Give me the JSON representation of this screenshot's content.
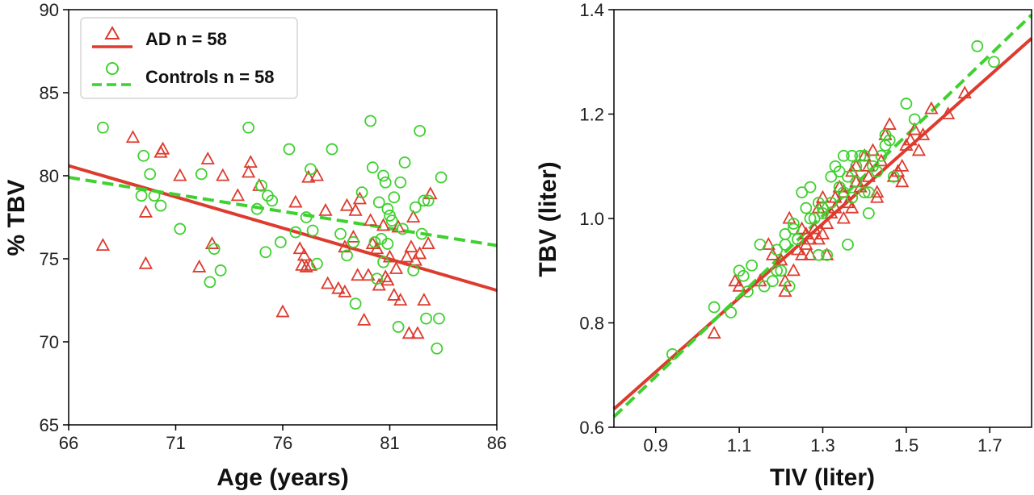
{
  "colors": {
    "ad": "#dd3b2e",
    "controls": "#3ed12f"
  },
  "chart_data": [
    {
      "type": "scatter",
      "xlabel": "Age (years)",
      "ylabel": "% TBV",
      "xlim": [
        66,
        86
      ],
      "ylim": [
        65,
        90
      ],
      "xticks": [
        "66",
        "71",
        "76",
        "81",
        "86"
      ],
      "yticks": [
        "65",
        "70",
        "75",
        "80",
        "85",
        "90"
      ],
      "legend": "top-left",
      "grid": false,
      "series": [
        {
          "name": "AD n = 58",
          "marker": "triangle",
          "points": [
            [
              67.6,
              75.8
            ],
            [
              69.0,
              82.3
            ],
            [
              69.6,
              74.7
            ],
            [
              69.6,
              77.8
            ],
            [
              70.3,
              81.4
            ],
            [
              70.4,
              81.6
            ],
            [
              71.2,
              80.0
            ],
            [
              72.1,
              74.5
            ],
            [
              72.5,
              81.0
            ],
            [
              72.7,
              75.9
            ],
            [
              73.2,
              80.0
            ],
            [
              74.4,
              80.2
            ],
            [
              74.5,
              80.8
            ],
            [
              74.9,
              79.4
            ],
            [
              76.0,
              71.8
            ],
            [
              76.6,
              78.4
            ],
            [
              76.8,
              75.6
            ],
            [
              76.9,
              74.6
            ],
            [
              77.0,
              75.2
            ],
            [
              77.1,
              74.5
            ],
            [
              77.2,
              79.9
            ],
            [
              77.3,
              74.6
            ],
            [
              77.6,
              80.0
            ],
            [
              78.0,
              77.9
            ],
            [
              78.1,
              73.5
            ],
            [
              78.6,
              73.2
            ],
            [
              78.9,
              75.7
            ],
            [
              78.9,
              73.0
            ],
            [
              79.0,
              78.2
            ],
            [
              79.3,
              76.3
            ],
            [
              79.4,
              77.9
            ],
            [
              79.5,
              74.0
            ],
            [
              79.6,
              78.6
            ],
            [
              79.8,
              71.3
            ],
            [
              80.0,
              74.0
            ],
            [
              80.1,
              77.3
            ],
            [
              80.2,
              75.9
            ],
            [
              80.4,
              75.6
            ],
            [
              80.5,
              73.4
            ],
            [
              80.7,
              77.0
            ],
            [
              80.8,
              73.9
            ],
            [
              80.9,
              73.7
            ],
            [
              81.0,
              75.1
            ],
            [
              81.2,
              72.8
            ],
            [
              81.3,
              74.4
            ],
            [
              81.4,
              76.9
            ],
            [
              81.5,
              72.5
            ],
            [
              81.8,
              75.1
            ],
            [
              81.9,
              70.5
            ],
            [
              82.0,
              75.7
            ],
            [
              82.1,
              77.5
            ],
            [
              82.2,
              74.9
            ],
            [
              82.3,
              70.5
            ],
            [
              82.4,
              75.3
            ],
            [
              82.6,
              72.5
            ],
            [
              82.8,
              75.9
            ],
            [
              82.9,
              78.9
            ],
            [
              73.9,
              78.8
            ]
          ],
          "fit": [
            [
              66,
              80.6
            ],
            [
              86,
              73.1
            ]
          ],
          "line_style": "solid"
        },
        {
          "name": "Controls n = 58",
          "marker": "circle",
          "points": [
            [
              67.6,
              82.9
            ],
            [
              69.4,
              78.8
            ],
            [
              69.5,
              81.2
            ],
            [
              69.8,
              80.1
            ],
            [
              70.0,
              78.8
            ],
            [
              70.3,
              78.2
            ],
            [
              71.2,
              76.8
            ],
            [
              72.2,
              80.1
            ],
            [
              72.6,
              73.6
            ],
            [
              72.8,
              75.6
            ],
            [
              73.1,
              74.3
            ],
            [
              74.4,
              82.9
            ],
            [
              74.8,
              78.0
            ],
            [
              75.0,
              79.4
            ],
            [
              75.2,
              75.4
            ],
            [
              75.3,
              78.8
            ],
            [
              75.5,
              78.5
            ],
            [
              75.9,
              76.0
            ],
            [
              76.3,
              81.6
            ],
            [
              76.6,
              76.6
            ],
            [
              77.1,
              77.5
            ],
            [
              77.3,
              80.4
            ],
            [
              77.4,
              76.7
            ],
            [
              77.6,
              74.7
            ],
            [
              78.3,
              81.6
            ],
            [
              78.7,
              76.5
            ],
            [
              79.0,
              75.2
            ],
            [
              79.3,
              76.0
            ],
            [
              79.4,
              72.3
            ],
            [
              79.7,
              79.0
            ],
            [
              80.1,
              83.3
            ],
            [
              80.2,
              80.5
            ],
            [
              80.3,
              76.0
            ],
            [
              80.4,
              73.8
            ],
            [
              80.5,
              78.4
            ],
            [
              80.6,
              76.2
            ],
            [
              80.7,
              74.8
            ],
            [
              80.7,
              80.0
            ],
            [
              80.8,
              79.6
            ],
            [
              80.9,
              78.0
            ],
            [
              81.0,
              77.6
            ],
            [
              81.1,
              77.3
            ],
            [
              81.2,
              78.7
            ],
            [
              81.4,
              70.9
            ],
            [
              81.5,
              79.6
            ],
            [
              81.6,
              76.8
            ],
            [
              81.7,
              80.8
            ],
            [
              82.1,
              74.3
            ],
            [
              82.2,
              78.1
            ],
            [
              82.4,
              82.7
            ],
            [
              82.5,
              76.5
            ],
            [
              82.6,
              78.5
            ],
            [
              82.7,
              71.4
            ],
            [
              82.8,
              78.5
            ],
            [
              83.2,
              69.6
            ],
            [
              83.3,
              71.4
            ],
            [
              83.4,
              79.9
            ],
            [
              80.9,
              75.9
            ]
          ],
          "fit": [
            [
              66,
              79.9
            ],
            [
              86,
              75.8
            ]
          ],
          "line_style": "dashed"
        }
      ]
    },
    {
      "type": "scatter",
      "xlabel": "TIV (liter)",
      "ylabel": "TBV (liter)",
      "xlim": [
        0.8,
        1.8
      ],
      "ylim": [
        0.6,
        1.4
      ],
      "xticks": [
        "0.9",
        "1.1",
        "1.3",
        "1.5",
        "1.7"
      ],
      "yticks": [
        "0.6",
        "0.8",
        "1.0",
        "1.2",
        "1.4"
      ],
      "grid": false,
      "series": [
        {
          "name": "AD n = 58",
          "marker": "triangle",
          "points": [
            [
              1.04,
              0.78
            ],
            [
              1.09,
              0.88
            ],
            [
              1.1,
              0.87
            ],
            [
              1.15,
              0.88
            ],
            [
              1.17,
              0.95
            ],
            [
              1.18,
              0.93
            ],
            [
              1.2,
              0.92
            ],
            [
              1.21,
              0.86
            ],
            [
              1.22,
              1.0
            ],
            [
              1.23,
              0.9
            ],
            [
              1.24,
              0.94
            ],
            [
              1.25,
              0.93
            ],
            [
              1.26,
              0.97
            ],
            [
              1.27,
              0.96
            ],
            [
              1.27,
              0.93
            ],
            [
              1.28,
              0.98
            ],
            [
              1.29,
              1.02
            ],
            [
              1.3,
              0.97
            ],
            [
              1.3,
              1.04
            ],
            [
              1.31,
              0.99
            ],
            [
              1.32,
              1.01
            ],
            [
              1.33,
              1.04
            ],
            [
              1.34,
              1.06
            ],
            [
              1.35,
              1.0
            ],
            [
              1.36,
              1.03
            ],
            [
              1.37,
              1.02
            ],
            [
              1.38,
              1.07
            ],
            [
              1.38,
              1.1
            ],
            [
              1.4,
              1.12
            ],
            [
              1.41,
              1.08
            ],
            [
              1.42,
              1.13
            ],
            [
              1.43,
              1.04
            ],
            [
              1.44,
              1.11
            ],
            [
              1.45,
              1.16
            ],
            [
              1.46,
              1.18
            ],
            [
              1.48,
              1.09
            ],
            [
              1.49,
              1.1
            ],
            [
              1.49,
              1.07
            ],
            [
              1.5,
              1.14
            ],
            [
              1.51,
              1.15
            ],
            [
              1.52,
              1.17
            ],
            [
              1.53,
              1.13
            ],
            [
              1.54,
              1.16
            ],
            [
              1.56,
              1.21
            ],
            [
              1.6,
              1.2
            ],
            [
              1.64,
              1.24
            ],
            [
              1.26,
              0.95
            ],
            [
              1.29,
              0.96
            ],
            [
              1.31,
              0.93
            ],
            [
              1.33,
              1.02
            ],
            [
              1.35,
              1.05
            ],
            [
              1.37,
              1.09
            ],
            [
              1.39,
              1.06
            ],
            [
              1.41,
              1.1
            ],
            [
              1.43,
              1.05
            ],
            [
              1.47,
              1.08
            ],
            [
              1.25,
              0.98
            ],
            [
              1.21,
              0.88
            ]
          ],
          "fit": [
            [
              0.8,
              0.635
            ],
            [
              1.8,
              1.345
            ]
          ],
          "line_style": "solid"
        },
        {
          "name": "Controls n = 58",
          "marker": "circle",
          "points": [
            [
              0.94,
              0.74
            ],
            [
              1.04,
              0.83
            ],
            [
              1.08,
              0.82
            ],
            [
              1.1,
              0.9
            ],
            [
              1.11,
              0.89
            ],
            [
              1.13,
              0.91
            ],
            [
              1.15,
              0.95
            ],
            [
              1.16,
              0.87
            ],
            [
              1.18,
              0.88
            ],
            [
              1.19,
              0.9
            ],
            [
              1.2,
              0.9
            ],
            [
              1.21,
              0.97
            ],
            [
              1.21,
              0.95
            ],
            [
              1.22,
              0.87
            ],
            [
              1.23,
              0.98
            ],
            [
              1.25,
              1.05
            ],
            [
              1.26,
              1.02
            ],
            [
              1.27,
              1.06
            ],
            [
              1.28,
              1.0
            ],
            [
              1.29,
              0.93
            ],
            [
              1.3,
              1.02
            ],
            [
              1.31,
              0.93
            ],
            [
              1.32,
              1.08
            ],
            [
              1.33,
              1.1
            ],
            [
              1.34,
              1.06
            ],
            [
              1.35,
              1.12
            ],
            [
              1.36,
              0.95
            ],
            [
              1.36,
              1.08
            ],
            [
              1.37,
              1.12
            ],
            [
              1.38,
              1.07
            ],
            [
              1.39,
              1.12
            ],
            [
              1.4,
              1.05
            ],
            [
              1.4,
              1.12
            ],
            [
              1.41,
              1.01
            ],
            [
              1.42,
              1.1
            ],
            [
              1.44,
              1.12
            ],
            [
              1.45,
              1.16
            ],
            [
              1.45,
              1.14
            ],
            [
              1.47,
              1.08
            ],
            [
              1.5,
              1.22
            ],
            [
              1.52,
              1.19
            ],
            [
              1.67,
              1.33
            ],
            [
              1.71,
              1.3
            ],
            [
              1.3,
              1.01
            ],
            [
              1.27,
              1.0
            ],
            [
              1.24,
              0.96
            ],
            [
              1.34,
              1.09
            ],
            [
              1.38,
              1.1
            ],
            [
              1.43,
              1.09
            ],
            [
              1.46,
              1.15
            ],
            [
              1.32,
              1.03
            ],
            [
              1.29,
              1.03
            ],
            [
              1.19,
              0.94
            ],
            [
              1.23,
              0.99
            ],
            [
              1.35,
              1.05
            ],
            [
              1.12,
              0.86
            ],
            [
              1.41,
              1.05
            ],
            [
              1.37,
              1.04
            ]
          ],
          "fit": [
            [
              0.8,
              0.62
            ],
            [
              1.8,
              1.39
            ]
          ],
          "line_style": "dashed"
        }
      ]
    }
  ]
}
